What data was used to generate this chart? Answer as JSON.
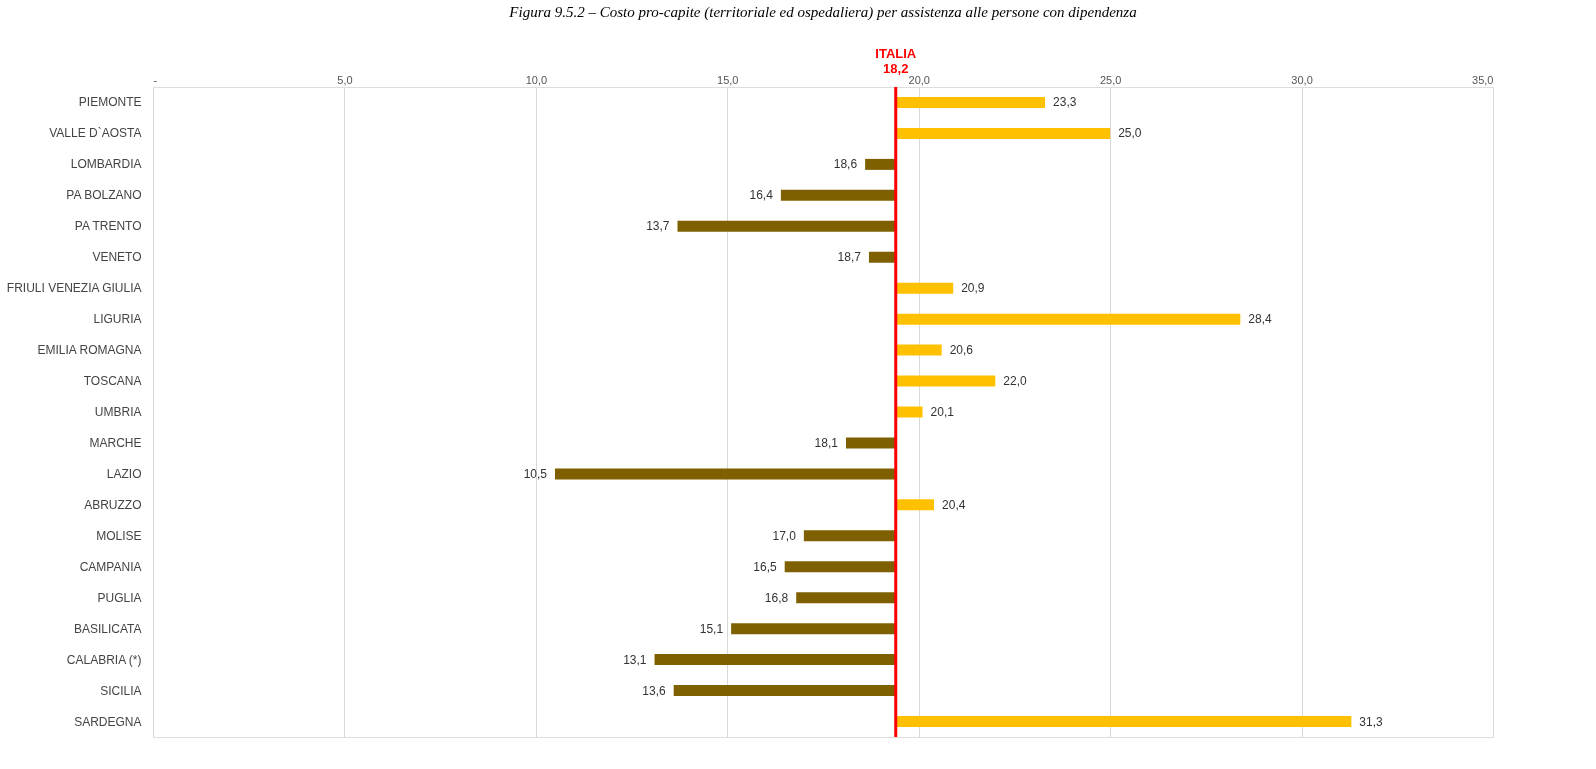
{
  "chart_data": {
    "type": "bar",
    "orientation": "horizontal",
    "title": "Figura 9.5.2 – Costo pro-capite (territoriale ed ospedaliera) per assistenza alle persone con dipendenza",
    "categories": [
      "PIEMONTE",
      "VALLE D`AOSTA",
      "LOMBARDIA",
      "PA BOLZANO",
      "PA TRENTO",
      "VENETO",
      "FRIULI VENEZIA GIULIA",
      "LIGURIA",
      "EMILIA ROMAGNA",
      "TOSCANA",
      "UMBRIA",
      "MARCHE",
      "LAZIO",
      "ABRUZZO",
      "MOLISE",
      "CAMPANIA",
      "PUGLIA",
      "BASILICATA",
      "CALABRIA (*)",
      "SICILIA",
      "SARDEGNA"
    ],
    "base": [
      19.4,
      19.4,
      19.4,
      19.4,
      19.4,
      19.4,
      19.4,
      19.4,
      19.4,
      19.4,
      19.4,
      19.4,
      19.4,
      19.4,
      19.4,
      19.4,
      19.4,
      19.4,
      19.4,
      19.4,
      19.4
    ],
    "values": [
      3.9,
      5.6,
      -0.8,
      -3.0,
      -5.7,
      -0.7,
      1.5,
      9.0,
      1.2,
      2.6,
      0.7,
      -1.3,
      -8.9,
      1.0,
      -2.4,
      -2.9,
      -2.6,
      -4.3,
      -6.3,
      -5.8,
      11.9
    ],
    "value_labels": [
      "23,3",
      "25,0",
      "18,6",
      "16,4",
      "13,7",
      "18,7",
      "20,9",
      "28,4",
      "20,6",
      "22,0",
      "20,1",
      "18,1",
      "10,5",
      "20,4",
      "17,0",
      "16,5",
      "16,8",
      "15,1",
      "13,1",
      "13,6",
      "31,3"
    ],
    "colors": [
      "#ffc000",
      "#ffc000",
      "#7f6000",
      "#7f6000",
      "#7f6000",
      "#7f6000",
      "#ffc000",
      "#ffc000",
      "#ffc000",
      "#ffc000",
      "#ffc000",
      "#7f6000",
      "#7f6000",
      "#ffc000",
      "#7f6000",
      "#7f6000",
      "#7f6000",
      "#7f6000",
      "#7f6000",
      "#7f6000",
      "#ffc000"
    ],
    "xlim": [
      0,
      35
    ],
    "xticks": [
      {
        "value": 0,
        "label": "-"
      },
      {
        "value": 5,
        "label": "5,0"
      },
      {
        "value": 10,
        "label": "10,0"
      },
      {
        "value": 15,
        "label": "15,0"
      },
      {
        "value": 20,
        "label": "20,0"
      },
      {
        "value": 25,
        "label": "25,0"
      },
      {
        "value": 30,
        "label": "30,0"
      },
      {
        "value": 35,
        "label": "35,0"
      }
    ],
    "grid": "x",
    "ref_lines": [
      {
        "axis": "x",
        "value": 19.4,
        "label": "ITALIA\n18,2",
        "color": "#ff0000"
      }
    ]
  }
}
